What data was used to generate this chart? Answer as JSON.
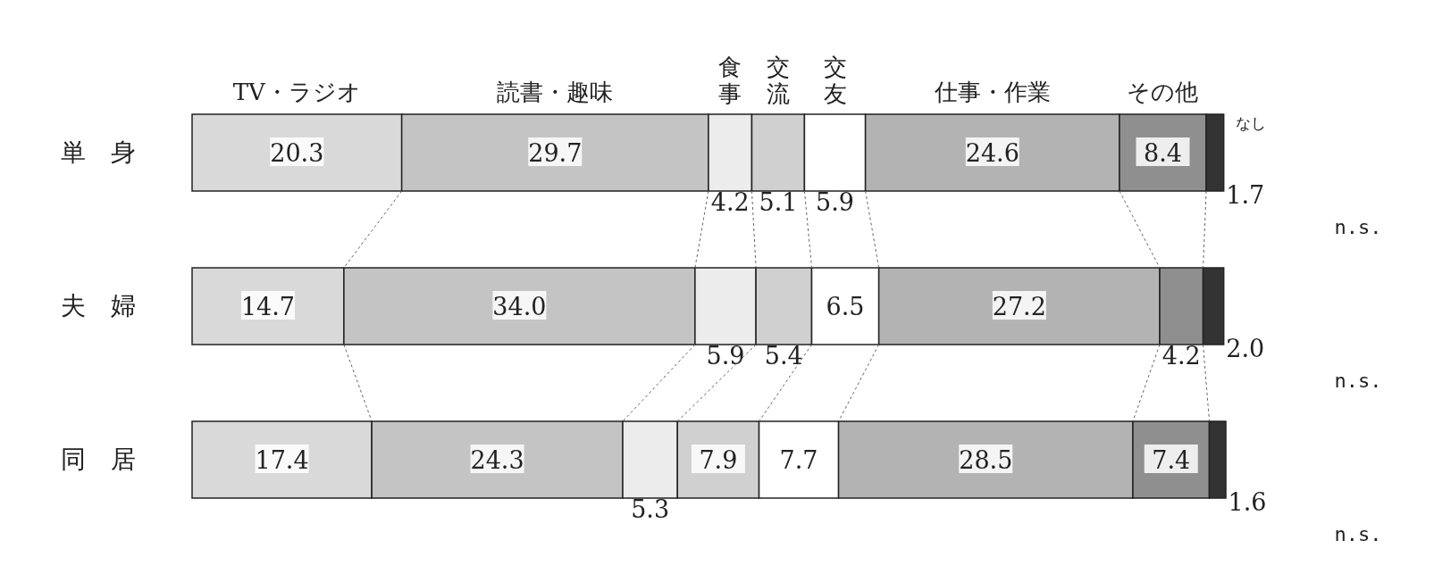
{
  "chart_data": {
    "type": "bar",
    "orientation": "horizontal",
    "stacked": true,
    "categories": [
      "単　身",
      "夫　婦",
      "同　居"
    ],
    "series": [
      {
        "name": "TV・ラジオ",
        "color": "#d9d9d9",
        "values": [
          20.3,
          14.7,
          17.4
        ],
        "value_labels": [
          "20.3",
          "14.7",
          "17.4"
        ]
      },
      {
        "name": "読書・趣味",
        "color": "#c4c4c4",
        "values": [
          29.7,
          34.0,
          24.3
        ],
        "value_labels": [
          "29.7",
          "34.0",
          "24.3"
        ]
      },
      {
        "name": "食事",
        "color": "#ececec",
        "values": [
          4.2,
          5.9,
          5.3
        ],
        "value_labels": [
          "4.2",
          "5.9",
          "5.3"
        ]
      },
      {
        "name": "交流",
        "color": "#d0d0d0",
        "values": [
          5.1,
          5.4,
          7.9
        ],
        "value_labels": [
          "5.1",
          "5.4",
          "7.9"
        ]
      },
      {
        "name": "交友",
        "color": "#ffffff",
        "values": [
          5.9,
          6.5,
          7.7
        ],
        "value_labels": [
          "5.9",
          "6.5",
          "7.7"
        ]
      },
      {
        "name": "仕事・作業",
        "color": "#b3b3b3",
        "values": [
          24.6,
          27.2,
          28.5
        ],
        "value_labels": [
          "24.6",
          "27.2",
          "28.5"
        ]
      },
      {
        "name": "その他",
        "color": "#8f8f8f",
        "values": [
          8.4,
          4.2,
          7.4
        ],
        "value_labels": [
          "8.4",
          "4.2",
          "7.4"
        ]
      },
      {
        "name": "なし",
        "color": "#333333",
        "values": [
          1.7,
          2.0,
          1.6
        ],
        "value_labels": [
          "1.7",
          "2.0",
          "1.6"
        ]
      }
    ],
    "annotations": [
      "n.s.",
      "n.s.",
      "n.s."
    ]
  }
}
